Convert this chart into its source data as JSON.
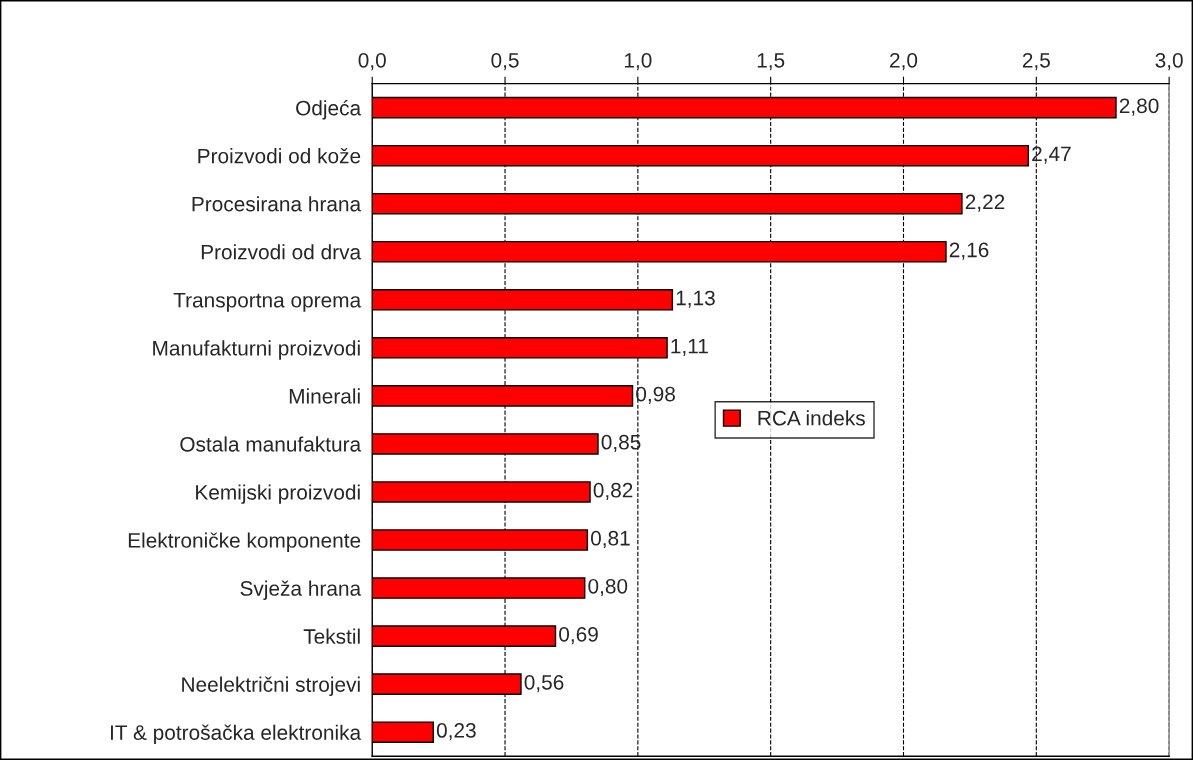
{
  "chart_data": {
    "type": "bar",
    "orientation": "horizontal",
    "categories": [
      "Odjeća",
      "Proizvodi od kože",
      "Procesirana hrana",
      "Proizvodi od drva",
      "Transportna oprema",
      "Manufakturni proizvodi",
      "Minerali",
      "Ostala manufaktura",
      "Kemijski proizvodi",
      "Elektroničke komponente",
      "Svježa hrana",
      "Tekstil",
      "Neelektrični strojevi",
      "IT & potrošačka elektronika"
    ],
    "series": [
      {
        "name": "RCA indeks",
        "color": "#ff0000",
        "values": [
          2.8,
          2.47,
          2.22,
          2.16,
          1.13,
          1.11,
          0.98,
          0.85,
          0.82,
          0.81,
          0.8,
          0.69,
          0.56,
          0.23
        ],
        "value_labels": [
          "2,80",
          "2,47",
          "2,22",
          "2,16",
          "1,13",
          "1,11",
          "0,98",
          "0,85",
          "0,82",
          "0,81",
          "0,80",
          "0,69",
          "0,56",
          "0,23"
        ]
      }
    ],
    "xlim": [
      0,
      3.0
    ],
    "xticks": [
      {
        "value": 0,
        "label": "0,0"
      },
      {
        "value": 0.5,
        "label": "0,5"
      },
      {
        "value": 1.0,
        "label": "1,0"
      },
      {
        "value": 1.5,
        "label": "1,5"
      },
      {
        "value": 2.0,
        "label": "2,0"
      },
      {
        "value": 2.5,
        "label": "2,5"
      },
      {
        "value": 3.0,
        "label": "3,0"
      }
    ],
    "grid": "x",
    "legend": "center"
  }
}
